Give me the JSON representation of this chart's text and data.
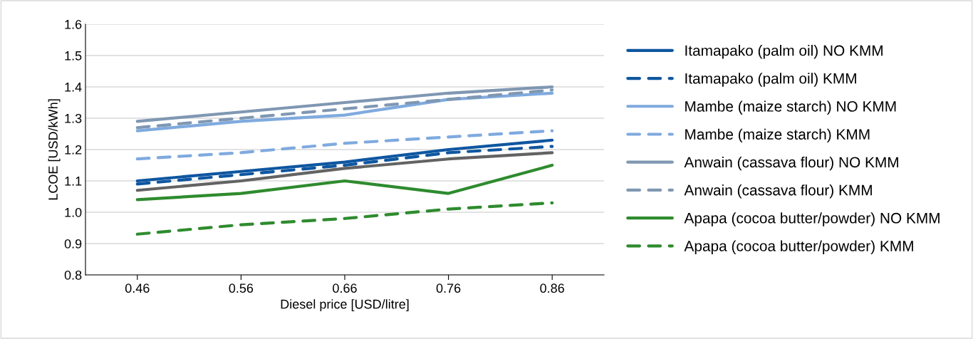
{
  "chart_data": {
    "type": "line",
    "xlabel": "Diesel price [USD/litre]",
    "ylabel": "LCOE [USD/kWh]",
    "categories": [
      "0.46",
      "0.56",
      "0.66",
      "0.76",
      "0.86"
    ],
    "ylim": [
      0.8,
      1.6
    ],
    "yticks": [
      {
        "value": 0.8,
        "label": "0.8"
      },
      {
        "value": 0.9,
        "label": "0.9"
      },
      {
        "value": 1.0,
        "label": "1.0"
      },
      {
        "value": 1.1,
        "label": "1.1"
      },
      {
        "value": 1.2,
        "label": "1.2"
      },
      {
        "value": 1.3,
        "label": "1.3"
      },
      {
        "value": 1.4,
        "label": "1.4"
      },
      {
        "value": 1.5,
        "label": "1.5"
      },
      {
        "value": 1.6,
        "label": "1.6"
      }
    ],
    "grid": "y",
    "legend": "right",
    "marker": "none",
    "series": [
      {
        "name": "Itamapako (palm oil) NO KMM",
        "color": "#0e56a0",
        "line_style": "solid",
        "values": [
          1.1,
          1.13,
          1.16,
          1.2,
          1.23
        ]
      },
      {
        "name": "Itamapako (palm oil) KMM",
        "color": "#0e56a0",
        "line_style": "dashed",
        "values": [
          1.09,
          1.12,
          1.15,
          1.19,
          1.21
        ]
      },
      {
        "name": "Mambe (maize starch) NO KMM",
        "color": "#7faadf",
        "line_style": "solid",
        "values": [
          1.26,
          1.29,
          1.31,
          1.36,
          1.38
        ]
      },
      {
        "name": "Mambe (maize starch) KMM",
        "color": "#7faadf",
        "line_style": "dashed",
        "values": [
          1.17,
          1.19,
          1.22,
          1.24,
          1.26
        ]
      },
      {
        "name": "Anwain (cassava flour) NO KMM",
        "color": "#7f97b2",
        "line_style": "solid",
        "values": [
          1.29,
          1.32,
          1.35,
          1.38,
          1.4
        ]
      },
      {
        "name": "Anwain (cassava flour) KMM",
        "color": "#7f97b2",
        "line_style": "dashed",
        "values": [
          1.27,
          1.3,
          1.33,
          1.36,
          1.39
        ]
      },
      {
        "name": "Apapa (cocoa butter/powder) NO KMM",
        "color": "#2e8b2e",
        "line_style": "solid",
        "values": [
          1.04,
          1.06,
          1.1,
          1.06,
          1.15
        ]
      },
      {
        "name": "Apapa (cocoa butter/powder) KMM",
        "color": "#2e8b2e",
        "line_style": "dashed",
        "values": [
          0.93,
          0.96,
          0.98,
          1.01,
          1.03
        ]
      },
      {
        "color": "#636363",
        "line_style": "solid",
        "values": [
          1.07,
          1.1,
          1.14,
          1.17,
          1.19
        ]
      }
    ]
  }
}
